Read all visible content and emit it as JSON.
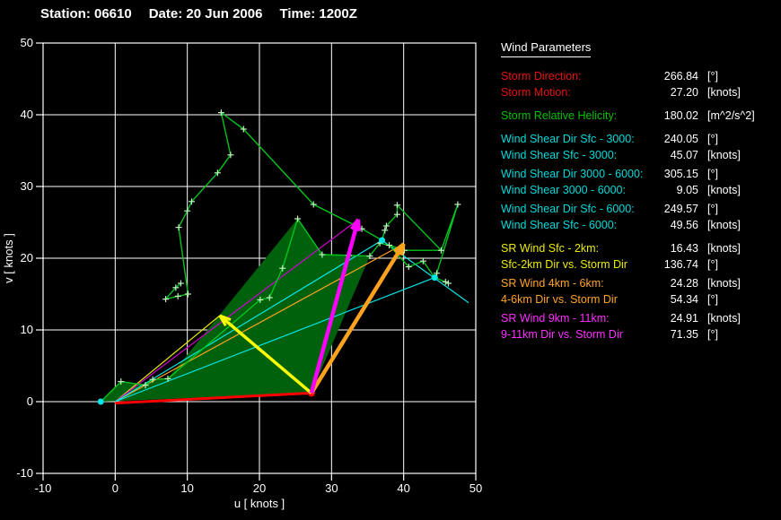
{
  "title": {
    "station": "Station: 06610",
    "date": "Date: 20 Jun 2006",
    "time": "Time: 1200Z"
  },
  "panel": {
    "heading": "Wind Parameters",
    "groups": [
      {
        "big": false,
        "rows": [
          {
            "label": "Storm Direction:",
            "value": "266.84",
            "unit": "[°]",
            "color": "#e41414"
          },
          {
            "label": "Storm Motion:",
            "value": "27.20",
            "unit": "[knots]",
            "color": "#e41414"
          }
        ]
      },
      {
        "big": true,
        "rows": [
          {
            "label": "Storm Relative Helicity:",
            "value": "180.02",
            "unit": "[m^2/s^2]",
            "color": "#00bf00"
          }
        ]
      },
      {
        "big": true,
        "rows": [
          {
            "label": "Wind Shear Dir Sfc - 3000:",
            "value": "240.05",
            "unit": "[°]",
            "color": "#00d9d9"
          },
          {
            "label": "Wind Shear Sfc - 3000:",
            "value": "45.07",
            "unit": "[knots]",
            "color": "#00d9d9"
          }
        ]
      },
      {
        "big": false,
        "rows": [
          {
            "label": "Wind Shear Dir 3000 - 6000:",
            "value": "305.15",
            "unit": "[°]",
            "color": "#00d9d9"
          },
          {
            "label": "Wind Shear 3000 - 6000:",
            "value": "9.05",
            "unit": "[knots]",
            "color": "#00d9d9"
          }
        ]
      },
      {
        "big": false,
        "rows": [
          {
            "label": "Wind Shear Dir Sfc - 6000:",
            "value": "249.57",
            "unit": "[°]",
            "color": "#00d9d9"
          },
          {
            "label": "Wind Shear Sfc - 6000:",
            "value": "49.56",
            "unit": "[knots]",
            "color": "#00d9d9"
          }
        ]
      },
      {
        "big": true,
        "rows": [
          {
            "label": "SR Wind Sfc - 2km:",
            "value": "16.43",
            "unit": "[knots]",
            "color": "#ebeb00"
          },
          {
            "label": "Sfc-2km Dir vs. Storm Dir",
            "value": "136.74",
            "unit": "[°]",
            "color": "#ebeb00"
          }
        ]
      },
      {
        "big": false,
        "rows": [
          {
            "label": "SR Wind 4km - 6km:",
            "value": "24.28",
            "unit": "[knots]",
            "color": "#ffa426"
          },
          {
            "label": "4-6km Dir vs. Storm Dir",
            "value": "54.34",
            "unit": "[°]",
            "color": "#ffa426"
          }
        ]
      },
      {
        "big": false,
        "rows": [
          {
            "label": "SR Wind 9km - 11km:",
            "value": "24.91",
            "unit": "[knots]",
            "color": "#ff2eff"
          },
          {
            "label": "9-11km Dir vs. Storm Dir",
            "value": "71.35",
            "unit": "[°]",
            "color": "#ff2eff"
          }
        ]
      }
    ]
  },
  "chart_data": {
    "type": "line",
    "subtype": "hodograph",
    "title": "Station: 06610  Date: 20 Jun 2006  Time: 1200Z",
    "xlabel": "u  [ knots ]",
    "ylabel": "v  [ knots ]",
    "xlim": [
      -10,
      50
    ],
    "ylim": [
      -10,
      50
    ],
    "xticks": [
      -10,
      0,
      10,
      20,
      30,
      40,
      50
    ],
    "yticks": [
      -10,
      0,
      10,
      20,
      30,
      40,
      50
    ],
    "grid": true,
    "colors": {
      "frame": "#ffffff",
      "grid": "#ffffff",
      "trace": "#00c41c",
      "marker": "#bdf2bd",
      "fill": "#00610d",
      "storm": "#ff0000",
      "sr_sfc2": "#ffff00",
      "sr_46": "#ffa21e",
      "sr_911": "#ff00ff",
      "thin_sfc2": "#e8e800",
      "thin_46": "#ffa21e",
      "thin_911": "#cf00cf",
      "shear": "#00e6e6"
    },
    "fill_polygon": [
      [
        27.2,
        1.2
      ],
      [
        -2,
        0
      ],
      [
        0.8,
        2.8
      ],
      [
        4.2,
        2.3
      ],
      [
        5.2,
        3.1
      ],
      [
        7.3,
        3.2
      ],
      [
        25.3,
        25.5
      ],
      [
        28.7,
        20.5
      ],
      [
        32.4,
        20.4
      ],
      [
        35.3,
        20.3
      ]
    ],
    "trace_segments": [
      [
        [
          -2,
          0
        ],
        [
          0.8,
          2.8
        ],
        [
          4.2,
          2.3
        ],
        [
          5.2,
          3.1
        ],
        [
          7.3,
          3.2
        ],
        [
          20.1,
          14.2
        ],
        [
          21.4,
          14.5
        ],
        [
          23.2,
          18.6
        ],
        [
          25.3,
          25.5
        ],
        [
          28.7,
          20.5
        ],
        [
          32.4,
          20.4
        ],
        [
          35.3,
          20.3
        ],
        [
          37.0,
          22.5
        ],
        [
          36.7,
          22.1
        ],
        [
          38.0,
          21.8
        ],
        [
          40.1,
          21.1
        ],
        [
          45.2,
          21.1
        ],
        [
          47.5,
          27.5
        ],
        [
          44.6,
          17.9
        ],
        [
          44.3,
          17.3
        ],
        [
          45.8,
          16.7
        ],
        [
          46.2,
          16.5
        ]
      ],
      [
        [
          38.0,
          21.8
        ],
        [
          40.7,
          18.8
        ],
        [
          42.7,
          19.6
        ],
        [
          44.3,
          17.3
        ]
      ],
      [
        [
          37.0,
          22.5
        ],
        [
          37.4,
          23.9
        ],
        [
          37.6,
          24.5
        ],
        [
          39.1,
          26.1
        ],
        [
          39.1,
          27.4
        ],
        [
          45.2,
          21.1
        ]
      ],
      [
        [
          37.0,
          22.5
        ],
        [
          34.2,
          24.1
        ],
        [
          27.5,
          27.5
        ],
        [
          17.8,
          38.0
        ],
        [
          14.7,
          40.3
        ],
        [
          16.0,
          34.4
        ],
        [
          14.2,
          31.9
        ],
        [
          10.6,
          27.9
        ],
        [
          10.0,
          26.6
        ],
        [
          8.8,
          24.3
        ],
        [
          10.1,
          15.0
        ],
        [
          8.7,
          14.7
        ],
        [
          7.0,
          14.3
        ],
        [
          8.4,
          15.9
        ],
        [
          9.1,
          16.5
        ]
      ]
    ],
    "vectors": [
      {
        "name": "storm-motion-vector",
        "color_key": "storm",
        "from": [
          0,
          -0.2
        ],
        "to": [
          27.2,
          1.2
        ],
        "width": 3,
        "arrow": false,
        "end_dot": 4
      },
      {
        "name": "sr-wind-sfc-2km-vector",
        "color_key": "sr_sfc2",
        "from": [
          27.2,
          1.2
        ],
        "to": [
          14.5,
          12.0
        ],
        "width": 3.5,
        "arrow": true
      },
      {
        "name": "sr-wind-4-6km-vector",
        "color_key": "sr_46",
        "from": [
          27.2,
          1.2
        ],
        "to": [
          40.0,
          22.0
        ],
        "width": 4.5,
        "arrow": true
      },
      {
        "name": "sr-wind-9-11km-vector",
        "color_key": "sr_911",
        "from": [
          27.2,
          1.2
        ],
        "to": [
          33.7,
          25.4
        ],
        "width": 4.5,
        "arrow": true
      }
    ],
    "thin_lines": [
      {
        "name": "mean-wind-sfc-2km-line",
        "color_key": "thin_sfc2",
        "from": [
          0,
          0
        ],
        "to": [
          14.5,
          12.0
        ]
      },
      {
        "name": "mean-wind-4-6km-line",
        "color_key": "thin_46",
        "from": [
          0,
          0
        ],
        "to": [
          40.0,
          22.0
        ]
      },
      {
        "name": "mean-wind-9-11km-line",
        "color_key": "thin_911",
        "from": [
          0,
          0
        ],
        "to": [
          33.7,
          25.4
        ]
      },
      {
        "name": "shear-sfc-3000-line",
        "color_key": "shear",
        "from": [
          0,
          0
        ],
        "to": [
          37.0,
          22.5
        ]
      },
      {
        "name": "shear-sfc-6000-line",
        "color_key": "shear",
        "from": [
          0,
          0
        ],
        "to": [
          44.3,
          17.3
        ]
      },
      {
        "name": "shear-3000-6000-line",
        "color_key": "shear",
        "from": [
          37.0,
          22.5
        ],
        "to": [
          49.0,
          13.8
        ]
      }
    ],
    "dots": [
      {
        "name": "surface-wind-dot",
        "color_key": "shear",
        "at": [
          -2,
          0
        ],
        "r": 3.5
      },
      {
        "name": "wind-3km-dot",
        "color_key": "shear",
        "at": [
          37.0,
          22.5
        ],
        "r": 3.5
      },
      {
        "name": "wind-6km-dot",
        "color_key": "shear",
        "at": [
          44.3,
          17.3
        ],
        "r": 3.5
      }
    ]
  }
}
